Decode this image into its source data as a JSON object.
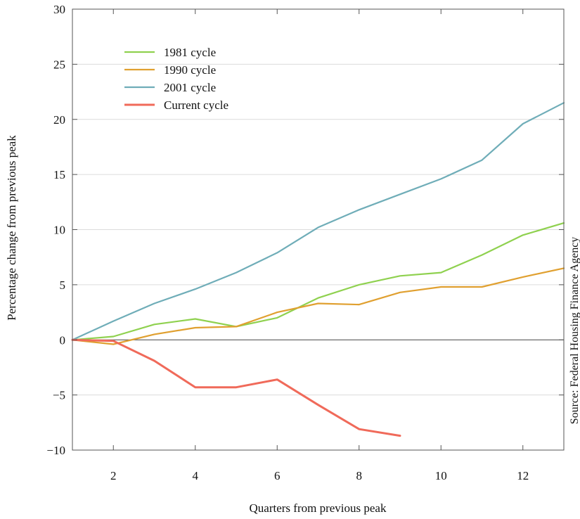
{
  "chart_data": {
    "type": "line",
    "xlabel": "Quarters from previous peak",
    "ylabel": "Percentage change from previous peak",
    "source": "Source: Federal Housing Finance Agency",
    "xlim": [
      1,
      13
    ],
    "ylim": [
      -10,
      30
    ],
    "x_ticks": [
      2,
      4,
      6,
      8,
      10,
      12
    ],
    "y_ticks": [
      -10,
      -5,
      0,
      5,
      10,
      15,
      20,
      25,
      30
    ],
    "y_tick_labels": [
      "−10",
      "−5",
      "0",
      "5",
      "10",
      "15",
      "20",
      "25",
      "30"
    ],
    "grid": "horizontal",
    "legend_position": "top-left",
    "series": [
      {
        "name": "1981 cycle",
        "color": "#8fd14f",
        "x": [
          1,
          2,
          3,
          4,
          5,
          6,
          7,
          8,
          9,
          10,
          11,
          12,
          13
        ],
        "values": [
          0,
          0.3,
          1.4,
          1.9,
          1.2,
          2.0,
          3.8,
          5.0,
          5.8,
          6.1,
          7.7,
          9.5,
          10.6
        ]
      },
      {
        "name": "1990 cycle",
        "color": "#e0a030",
        "x": [
          1,
          2,
          3,
          4,
          5,
          6,
          7,
          8,
          9,
          10,
          11,
          12,
          13
        ],
        "values": [
          0,
          -0.4,
          0.5,
          1.1,
          1.2,
          2.5,
          3.3,
          3.2,
          4.3,
          4.8,
          4.8,
          5.7,
          6.5
        ]
      },
      {
        "name": "2001 cycle",
        "color": "#6fadb8",
        "x": [
          1,
          2,
          3,
          4,
          5,
          6,
          7,
          8,
          9,
          10,
          11,
          12,
          13
        ],
        "values": [
          0,
          1.7,
          3.3,
          4.6,
          6.1,
          7.9,
          10.2,
          11.8,
          13.2,
          14.6,
          16.3,
          19.6,
          21.5
        ]
      },
      {
        "name": "Current cycle",
        "color": "#f06a5a",
        "x": [
          1,
          2,
          3,
          4,
          5,
          6,
          7,
          8,
          9
        ],
        "values": [
          0,
          -0.1,
          -1.9,
          -4.3,
          -4.3,
          -3.6,
          -5.9,
          -8.1,
          -8.7
        ]
      }
    ]
  }
}
